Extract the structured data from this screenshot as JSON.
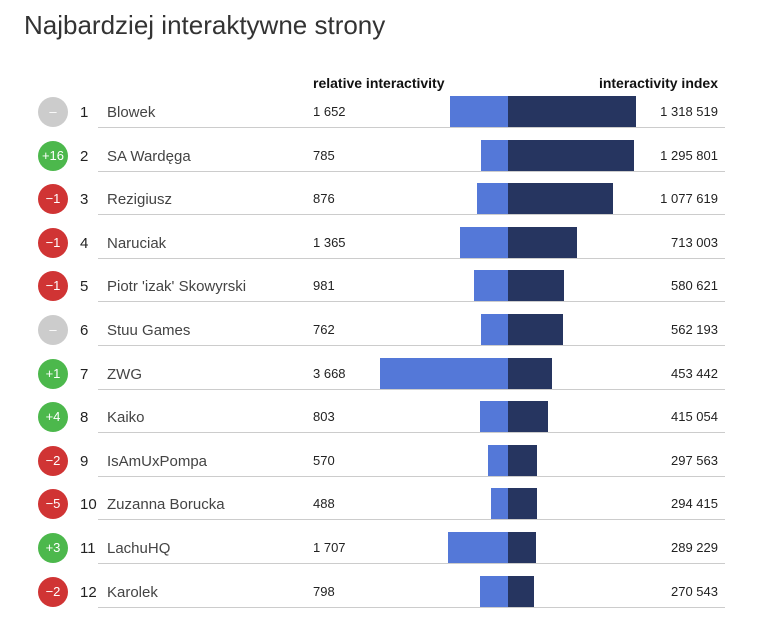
{
  "chart_data": {
    "type": "bar",
    "title": "Najbardziej interaktywne strony",
    "columns": {
      "relative": "relative interactivity",
      "index": "interactivity index"
    },
    "colors": {
      "relative": "#5478d8",
      "index": "#263560",
      "up": "#4cb84c",
      "down": "#d03434",
      "same": "#cccccc"
    },
    "rows": [
      {
        "rank": "1",
        "name": "Blowek",
        "change": "–",
        "dir": "same",
        "relative": 1652,
        "relative_label": "1 652",
        "index": 1318519,
        "index_label": "1 318 519"
      },
      {
        "rank": "2",
        "name": "SA Wardęga",
        "change": "+16",
        "dir": "up",
        "relative": 785,
        "relative_label": "785",
        "index": 1295801,
        "index_label": "1 295 801"
      },
      {
        "rank": "3",
        "name": "Rezigiusz",
        "change": "−1",
        "dir": "down",
        "relative": 876,
        "relative_label": "876",
        "index": 1077619,
        "index_label": "1 077 619"
      },
      {
        "rank": "4",
        "name": "Naruciak",
        "change": "−1",
        "dir": "down",
        "relative": 1365,
        "relative_label": "1 365",
        "index": 713003,
        "index_label": "713 003"
      },
      {
        "rank": "5",
        "name": "Piotr 'izak' Skowyrski",
        "change": "−1",
        "dir": "down",
        "relative": 981,
        "relative_label": "981",
        "index": 580621,
        "index_label": "580 621"
      },
      {
        "rank": "6",
        "name": "Stuu Games",
        "change": "–",
        "dir": "same",
        "relative": 762,
        "relative_label": "762",
        "index": 562193,
        "index_label": "562 193"
      },
      {
        "rank": "7",
        "name": "ZWG",
        "change": "+1",
        "dir": "up",
        "relative": 3668,
        "relative_label": "3 668",
        "index": 453442,
        "index_label": "453 442"
      },
      {
        "rank": "8",
        "name": "Kaiko",
        "change": "+4",
        "dir": "up",
        "relative": 803,
        "relative_label": "803",
        "index": 415054,
        "index_label": "415 054"
      },
      {
        "rank": "9",
        "name": "IsAmUxPompa",
        "change": "−2",
        "dir": "down",
        "relative": 570,
        "relative_label": "570",
        "index": 297563,
        "index_label": "297 563"
      },
      {
        "rank": "10",
        "name": "Zuzanna Borucka",
        "change": "−5",
        "dir": "down",
        "relative": 488,
        "relative_label": "488",
        "index": 294415,
        "index_label": "294 415"
      },
      {
        "rank": "11",
        "name": "LachuHQ",
        "change": "+3",
        "dir": "up",
        "relative": 1707,
        "relative_label": "1 707",
        "index": 289229,
        "index_label": "289 229"
      },
      {
        "rank": "12",
        "name": "Karolek",
        "change": "−2",
        "dir": "down",
        "relative": 798,
        "relative_label": "798",
        "index": 270543,
        "index_label": "270 543"
      }
    ]
  }
}
